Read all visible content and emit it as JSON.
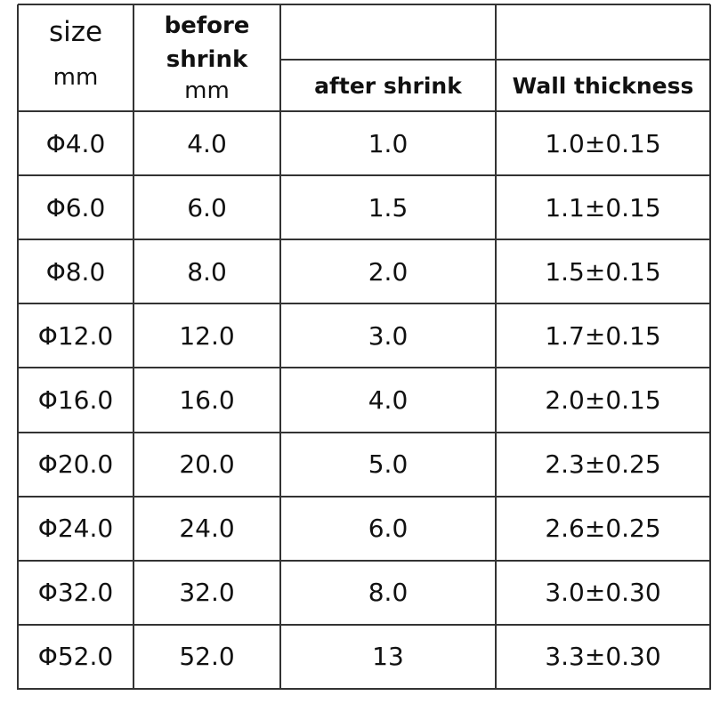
{
  "table": {
    "columns": [
      {
        "title": "size",
        "unit": "mm"
      },
      {
        "title": "before shrink",
        "unit": "mm"
      },
      {
        "title": "after shrink"
      },
      {
        "title": "Wall thickness"
      }
    ],
    "rows": [
      [
        "Φ4.0",
        "4.0",
        "1.0",
        "1.0±0.15"
      ],
      [
        "Φ6.0",
        "6.0",
        "1.5",
        "1.1±0.15"
      ],
      [
        "Φ8.0",
        "8.0",
        "2.0",
        "1.5±0.15"
      ],
      [
        "Φ12.0",
        "12.0",
        "3.0",
        "1.7±0.15"
      ],
      [
        "Φ16.0",
        "16.0",
        "4.0",
        "2.0±0.15"
      ],
      [
        "Φ20.0",
        "20.0",
        "5.0",
        "2.3±0.25"
      ],
      [
        "Φ24.0",
        "24.0",
        "6.0",
        "2.6±0.25"
      ],
      [
        "Φ32.0",
        "32.0",
        "8.0",
        "3.0±0.30"
      ],
      [
        "Φ52.0",
        "52.0",
        "13",
        "3.3±0.30"
      ]
    ]
  }
}
